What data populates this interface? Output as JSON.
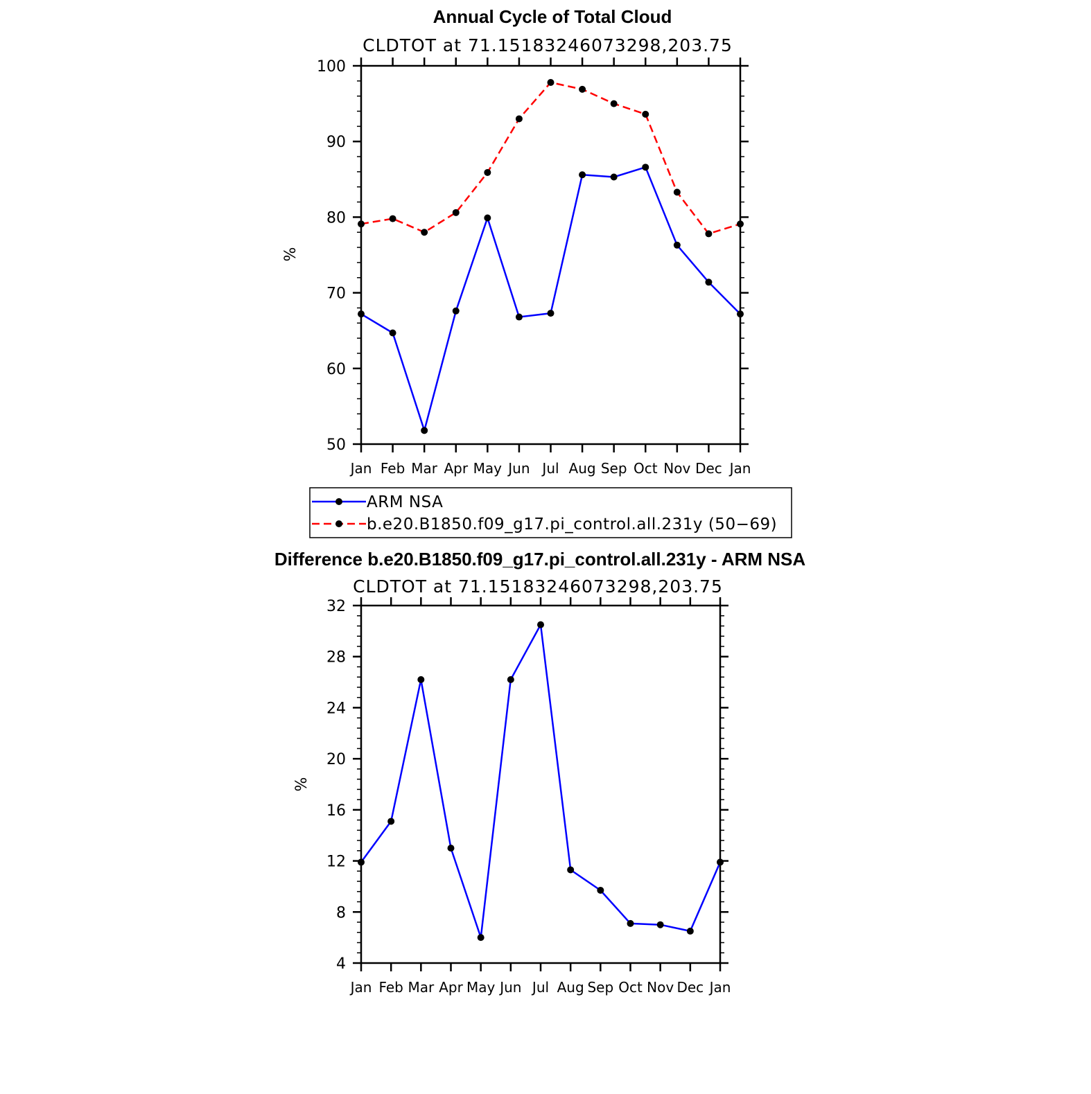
{
  "chart_data": [
    {
      "type": "line",
      "title": "Annual Cycle of Total Cloud",
      "subtitle": "CLDTOT at 71.15183246073298,203.75",
      "xlabel": "",
      "ylabel": "%",
      "categories": [
        "Jan",
        "Feb",
        "Mar",
        "Apr",
        "May",
        "Jun",
        "Jul",
        "Aug",
        "Sep",
        "Oct",
        "Nov",
        "Dec",
        "Jan"
      ],
      "ylim": [
        50,
        100
      ],
      "yticks": [
        "50",
        "60",
        "70",
        "80",
        "90",
        "100"
      ],
      "grid": false,
      "legend_position": "bottom",
      "series": [
        {
          "name": "ARM NSA",
          "color": "#0000ff",
          "dash": "solid",
          "values": [
            67.2,
            64.7,
            51.8,
            67.6,
            79.9,
            66.8,
            67.3,
            85.6,
            85.3,
            86.6,
            76.3,
            71.4,
            67.2
          ]
        },
        {
          "name": "b.e20.B1850.f09_g17.pi_control.all.231y (50−69)",
          "color": "#ff0000",
          "dash": "dashed",
          "values": [
            79.1,
            79.8,
            78.0,
            80.6,
            85.9,
            93.0,
            97.8,
            96.9,
            95.0,
            93.6,
            83.3,
            77.8,
            79.1
          ]
        }
      ]
    },
    {
      "type": "line",
      "title": "Difference b.e20.B1850.f09_g17.pi_control.all.231y - ARM NSA",
      "subtitle": "CLDTOT at 71.15183246073298,203.75",
      "xlabel": "",
      "ylabel": "%",
      "categories": [
        "Jan",
        "Feb",
        "Mar",
        "Apr",
        "May",
        "Jun",
        "Jul",
        "Aug",
        "Sep",
        "Oct",
        "Nov",
        "Dec",
        "Jan"
      ],
      "ylim": [
        4,
        32
      ],
      "yticks": [
        "4",
        "8",
        "12",
        "16",
        "20",
        "24",
        "28",
        "32"
      ],
      "grid": false,
      "series": [
        {
          "name": "",
          "color": "#0000ff",
          "dash": "solid",
          "values": [
            11.9,
            15.1,
            26.2,
            13.0,
            6.0,
            26.2,
            30.5,
            11.3,
            9.7,
            7.1,
            7.0,
            6.5,
            11.9
          ]
        }
      ]
    }
  ]
}
